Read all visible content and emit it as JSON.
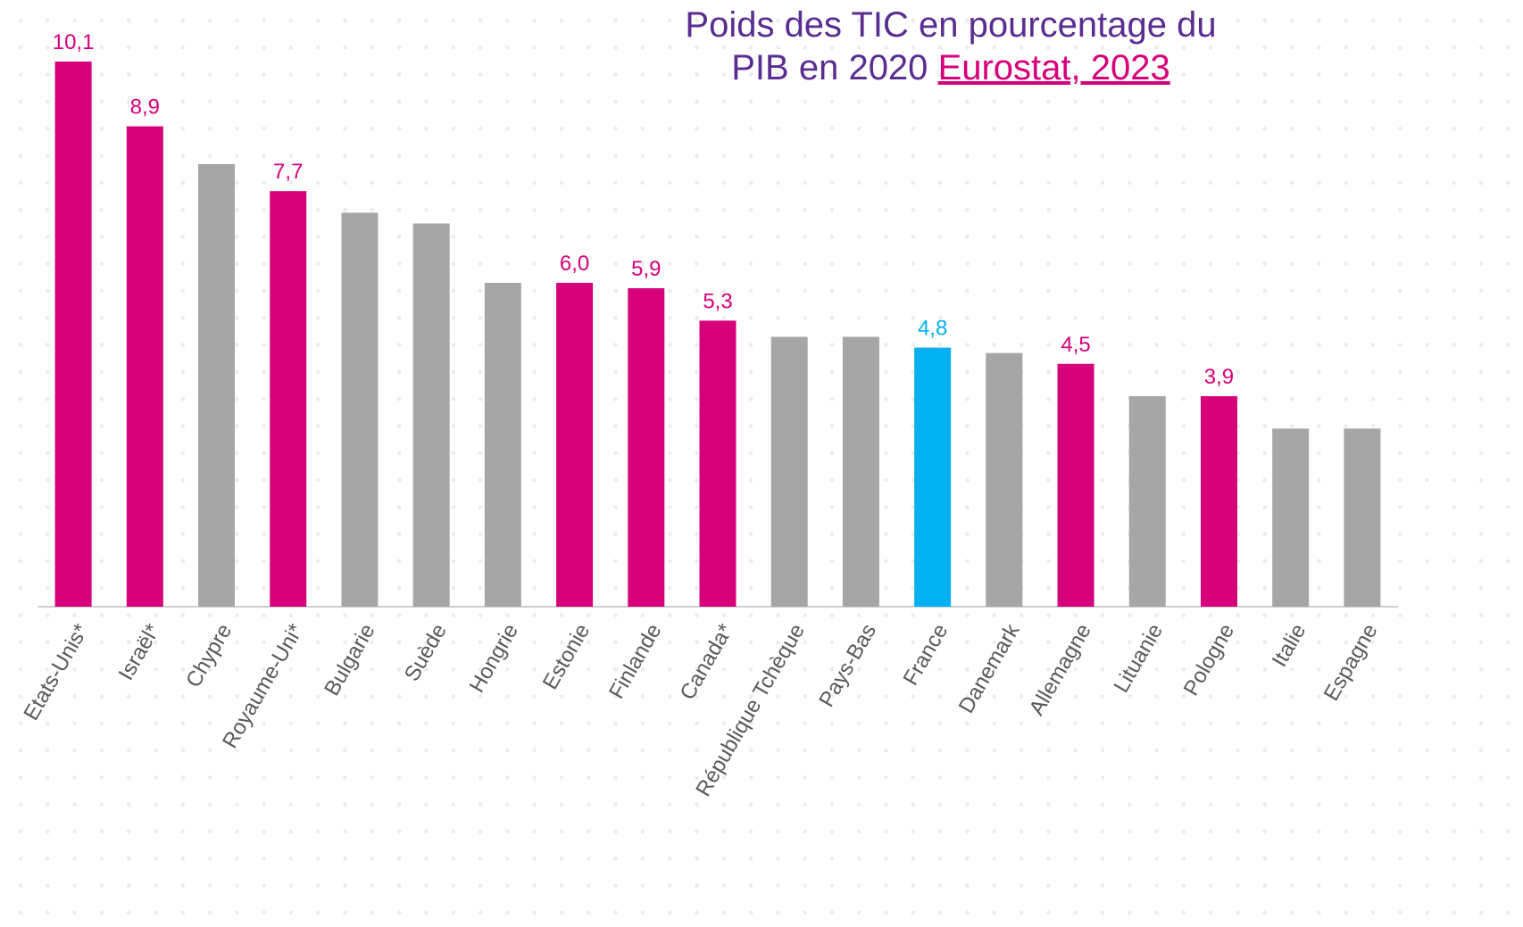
{
  "chart_data": {
    "type": "bar",
    "title": "Poids des TIC en pourcentage du PIB en 2020",
    "source": "Eurostat, 2023",
    "categories": [
      "Etats-Unis*",
      "Israël*",
      "Chypre",
      "Royaume-Uni*",
      "Bulgarie",
      "Suède",
      "Hongrie",
      "Estonie",
      "Finlande",
      "Canada*",
      "République Tchèque",
      "Pays-Bas",
      "France",
      "Danemark",
      "Allemagne",
      "Lituanie",
      "Pologne",
      "Italie",
      "Espagne"
    ],
    "values": [
      10.1,
      8.9,
      8.2,
      7.7,
      7.3,
      7.1,
      6.0,
      6.0,
      5.9,
      5.3,
      5.0,
      5.0,
      4.8,
      4.7,
      4.5,
      3.9,
      3.9,
      3.3,
      3.3
    ],
    "value_labels": [
      "10,1",
      "8,9",
      null,
      "7,7",
      null,
      null,
      null,
      "6,0",
      "5,9",
      "5,3",
      null,
      null,
      "4,8",
      null,
      "4,5",
      null,
      "3,9",
      null,
      null
    ],
    "colors": [
      "#d6007a",
      "#d6007a",
      "#a6a6a6",
      "#d6007a",
      "#a6a6a6",
      "#a6a6a6",
      "#a6a6a6",
      "#d6007a",
      "#d6007a",
      "#d6007a",
      "#a6a6a6",
      "#a6a6a6",
      "#00b0f0",
      "#a6a6a6",
      "#d6007a",
      "#a6a6a6",
      "#d6007a",
      "#a6a6a6",
      "#a6a6a6"
    ],
    "ylim": [
      0,
      10.1
    ]
  }
}
